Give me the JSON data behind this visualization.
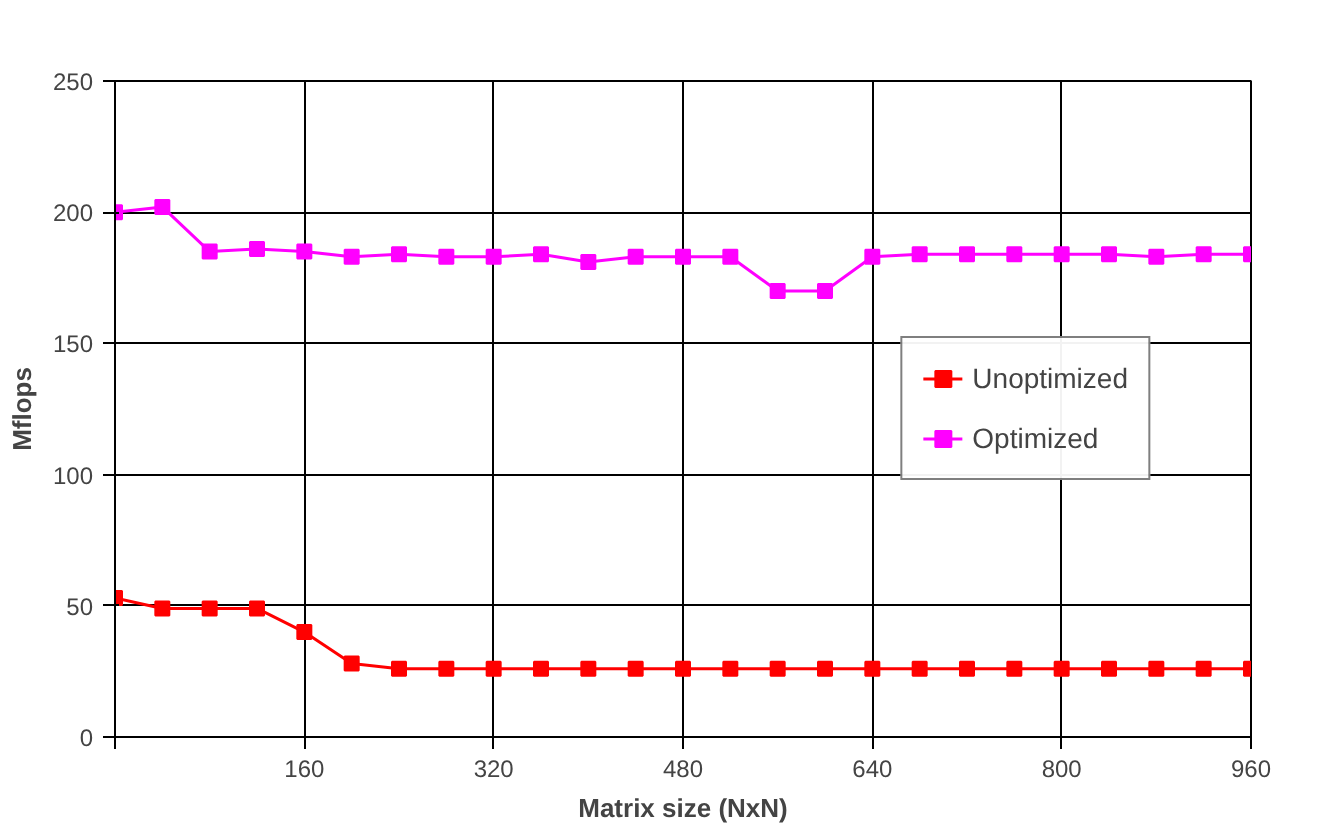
{
  "chart_data": {
    "type": "line",
    "xlabel": "Matrix size (NxN)",
    "ylabel": "Mflops",
    "x": [
      0,
      40,
      80,
      120,
      160,
      200,
      240,
      280,
      320,
      360,
      400,
      440,
      480,
      520,
      560,
      600,
      640,
      680,
      720,
      760,
      800,
      840,
      880,
      920,
      960
    ],
    "series": [
      {
        "name": "Unoptimized",
        "color": "#ff0000",
        "values": [
          53,
          49,
          49,
          49,
          40,
          28,
          26,
          26,
          26,
          26,
          26,
          26,
          26,
          26,
          26,
          26,
          26,
          26,
          26,
          26,
          26,
          26,
          26,
          26,
          26
        ]
      },
      {
        "name": "Optimized",
        "color": "#ff00ff",
        "values": [
          200,
          202,
          185,
          186,
          185,
          183,
          184,
          183,
          183,
          184,
          181,
          183,
          183,
          183,
          170,
          170,
          183,
          184,
          184,
          184,
          184,
          184,
          183,
          184,
          184
        ]
      }
    ],
    "xlim": [
      0,
      960
    ],
    "xticks": [
      {
        "value": 0,
        "label": null
      },
      160,
      320,
      480,
      640,
      800,
      960
    ],
    "ylim": [
      0,
      250
    ],
    "yticks": [
      0,
      50,
      100,
      150,
      200,
      250
    ],
    "grid": true,
    "legend": "right",
    "marker": "square",
    "line_style": "solid"
  }
}
